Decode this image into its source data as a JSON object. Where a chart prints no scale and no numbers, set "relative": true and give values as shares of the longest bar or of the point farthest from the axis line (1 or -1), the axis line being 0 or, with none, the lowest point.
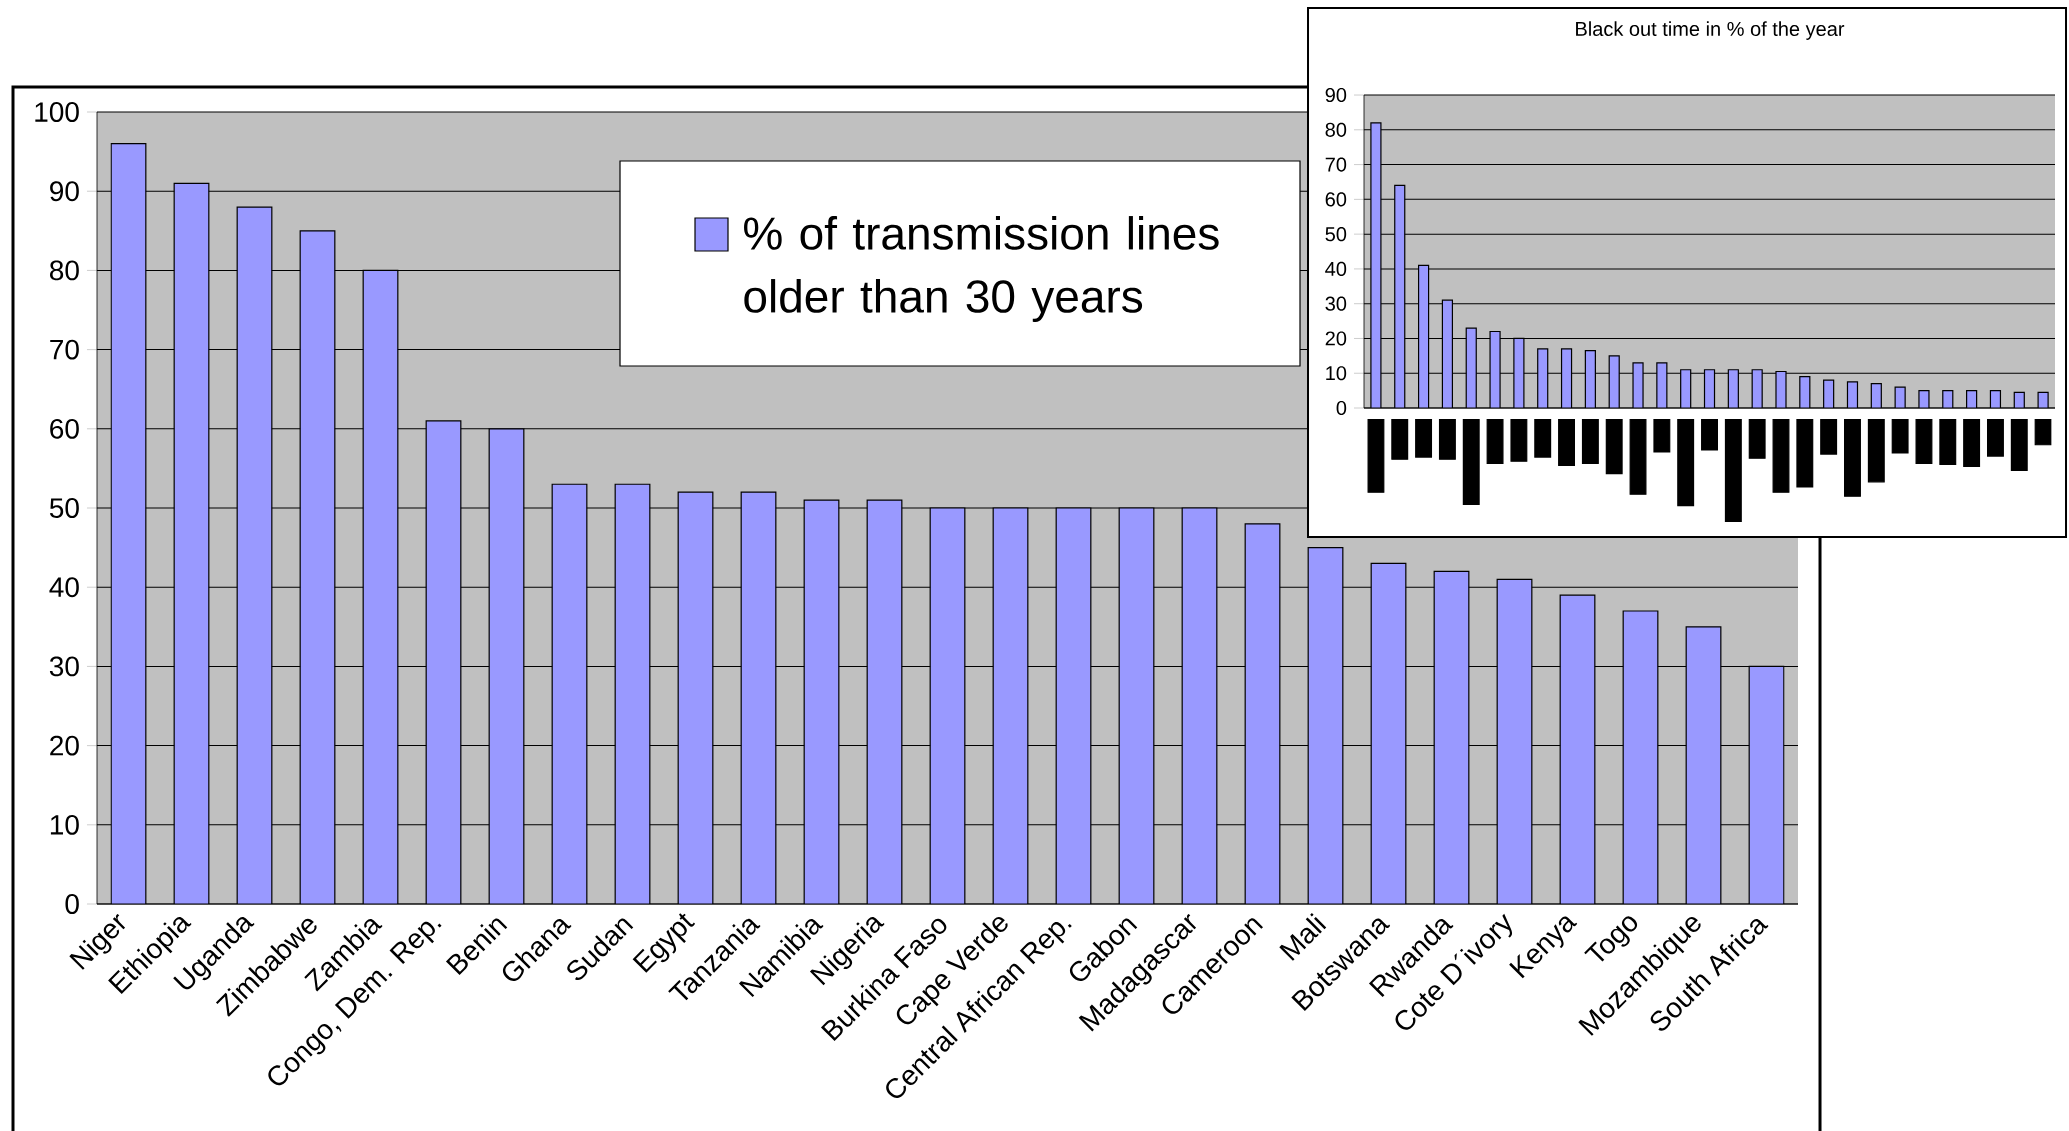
{
  "chart_data": [
    {
      "type": "bar",
      "categories": [
        "Niger",
        "Ethiopia",
        "Uganda",
        "Zimbabwe",
        "Zambia",
        "Congo, Dem. Rep.",
        "Benin",
        "Ghana",
        "Sudan",
        "Egypt",
        "Tanzania",
        "Namibia",
        "Nigeria",
        "Burkina Faso",
        "Cape Verde",
        "Central African Rep.",
        "Gabon",
        "Madagascar",
        "Cameroon",
        "Mali",
        "Botswana",
        "Rwanda",
        "Cote D´ivory",
        "Kenya",
        "Togo",
        "Mozambique",
        "South Africa"
      ],
      "series": [
        {
          "name": "% of transmission lines older than 30 years",
          "color": "#9999ff",
          "values": [
            96,
            91,
            88,
            85,
            80,
            61,
            60,
            53,
            53,
            52,
            52,
            51,
            51,
            50,
            50,
            50,
            50,
            50,
            48,
            45,
            43,
            42,
            41,
            39,
            37,
            35,
            30
          ]
        }
      ],
      "ylim": [
        0,
        100
      ],
      "yticks": [
        0,
        10,
        20,
        30,
        40,
        50,
        60,
        70,
        80,
        90,
        100
      ],
      "grid": "y",
      "legend": "top"
    },
    {
      "type": "bar",
      "title": "Black out time in % of the year",
      "categories": [
        null,
        null,
        null,
        null,
        null,
        null,
        null,
        null,
        null,
        null,
        null,
        null,
        null,
        null,
        null,
        null,
        null,
        null,
        null,
        null,
        null,
        null,
        null,
        null,
        null,
        null,
        null,
        null,
        null
      ],
      "values": [
        82,
        64,
        41,
        31,
        23,
        22,
        20,
        17,
        17,
        16.5,
        15,
        13,
        13,
        11,
        11,
        11,
        11,
        10.5,
        9,
        8,
        7.5,
        7,
        6,
        5,
        5,
        5,
        5,
        4.5,
        4.5
      ],
      "color": "#9999ff",
      "ylim": [
        0,
        90
      ],
      "yticks": [
        0,
        10,
        20,
        30,
        40,
        50,
        60,
        70,
        80,
        90
      ],
      "grid": "y"
    },
    {
      "type": "bar",
      "relative": true,
      "categories": [
        null,
        null,
        null,
        null,
        null,
        null,
        null,
        null,
        null,
        null,
        null,
        null,
        null,
        null,
        null,
        null,
        null,
        null,
        null,
        null,
        null,
        null,
        null,
        null,
        null,
        null,
        null,
        null,
        null
      ],
      "values": [
        -0.71,
        -0.39,
        -0.37,
        -0.39,
        -0.83,
        -0.43,
        -0.41,
        -0.37,
        -0.45,
        -0.43,
        -0.53,
        -0.73,
        -0.32,
        -0.84,
        -0.3,
        -1,
        -0.38,
        -0.71,
        -0.66,
        -0.34,
        -0.75,
        -0.61,
        -0.33,
        -0.43,
        -0.44,
        -0.46,
        -0.36,
        -0.5,
        -0.25
      ],
      "color": "#000000"
    }
  ]
}
